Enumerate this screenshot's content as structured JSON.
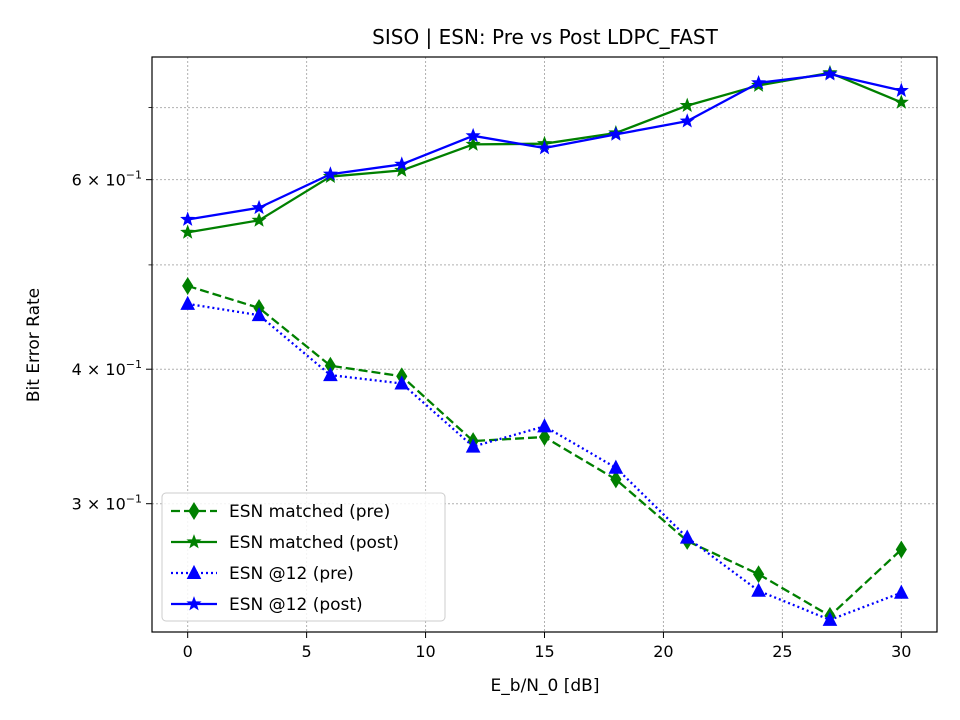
{
  "chart_data": {
    "type": "line",
    "title": "SISO | ESN: Pre vs Post LDPC_FAST",
    "xlabel": "E_b/N_0 [dB]",
    "ylabel": "Bit Error Rate",
    "yscale": "log",
    "xlim": [
      -1.5,
      31.5
    ],
    "ylim": [
      0.228,
      0.78
    ],
    "grid": true,
    "x": [
      0,
      3,
      6,
      9,
      12,
      15,
      18,
      21,
      24,
      27,
      30
    ],
    "xticks": [
      {
        "value": 0,
        "label": "0"
      },
      {
        "value": 5,
        "label": "5"
      },
      {
        "value": 10,
        "label": "10"
      },
      {
        "value": 15,
        "label": "15"
      },
      {
        "value": 20,
        "label": "20"
      },
      {
        "value": 25,
        "label": "25"
      },
      {
        "value": 30,
        "label": "30"
      }
    ],
    "yticks_major": [
      {
        "value": 0.3,
        "mantissa": "3",
        "base": "10",
        "exponent": "−1"
      },
      {
        "value": 0.4,
        "mantissa": "4",
        "base": "10",
        "exponent": "−1"
      },
      {
        "value": 0.6,
        "mantissa": "6",
        "base": "10",
        "exponent": "−1"
      }
    ],
    "yticks_minor": [
      0.5,
      0.7
    ],
    "legend_position": "lower-left",
    "series": [
      {
        "name": "ESN matched (pre)",
        "color": "#008000",
        "linestyle": "dashed",
        "marker": "diamond",
        "values": [
          0.478,
          0.456,
          0.403,
          0.394,
          0.343,
          0.346,
          0.316,
          0.277,
          0.258,
          0.236,
          0.272
        ]
      },
      {
        "name": "ESN matched (post)",
        "color": "#008000",
        "linestyle": "solid",
        "marker": "star",
        "values": [
          0.536,
          0.55,
          0.604,
          0.612,
          0.647,
          0.648,
          0.663,
          0.703,
          0.734,
          0.754,
          0.708
        ]
      },
      {
        "name": "ESN @12 (pre)",
        "color": "#0000ff",
        "linestyle": "dotted",
        "marker": "triangle",
        "values": [
          0.46,
          0.449,
          0.395,
          0.388,
          0.339,
          0.354,
          0.324,
          0.279,
          0.249,
          0.234,
          0.248
        ]
      },
      {
        "name": "ESN @12 (post)",
        "color": "#0000ff",
        "linestyle": "solid",
        "marker": "star",
        "values": [
          0.551,
          0.565,
          0.607,
          0.62,
          0.659,
          0.642,
          0.661,
          0.68,
          0.738,
          0.752,
          0.726
        ]
      }
    ]
  }
}
